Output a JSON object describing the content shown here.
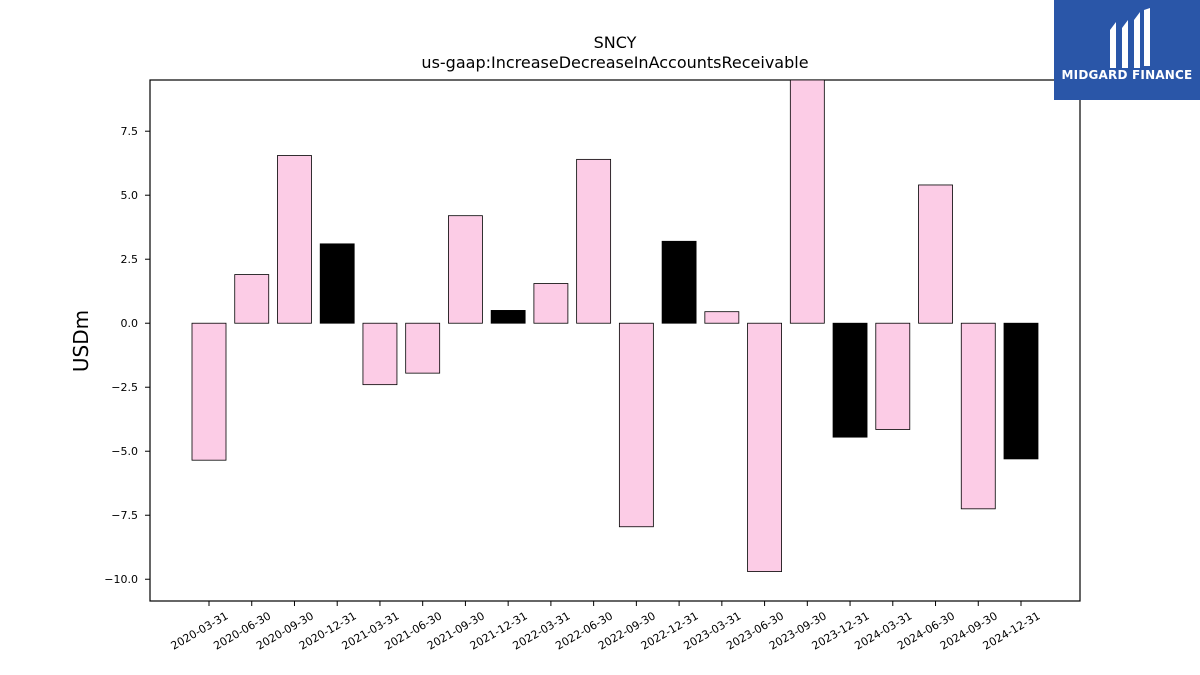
{
  "chart_data": {
    "type": "bar",
    "title": "SNCY",
    "subtitle": "us-gaap:IncreaseDecreaseInAccountsReceivable",
    "ylabel": "USDm",
    "xlabel": "",
    "ylim": [
      -10.85,
      9.5
    ],
    "yticks": [
      -10.0,
      -7.5,
      -5.0,
      -2.5,
      0.0,
      2.5,
      5.0,
      7.5
    ],
    "ytick_labels": [
      "−10.0",
      "−7.5",
      "−5.0",
      "−2.5",
      "0.0",
      "2.5",
      "5.0",
      "7.5"
    ],
    "categories": [
      "2020-03-31",
      "2020-06-30",
      "2020-09-30",
      "2020-12-31",
      "2021-03-31",
      "2021-06-30",
      "2021-09-30",
      "2021-12-31",
      "2022-03-31",
      "2022-06-30",
      "2022-09-30",
      "2022-12-31",
      "2023-03-31",
      "2023-06-30",
      "2023-09-30",
      "2023-12-31",
      "2024-03-31",
      "2024-06-30",
      "2024-09-30",
      "2024-12-31"
    ],
    "values": [
      -5.35,
      1.9,
      6.55,
      3.1,
      -2.4,
      -1.95,
      4.2,
      0.5,
      1.55,
      6.4,
      -7.95,
      3.2,
      0.45,
      -9.7,
      9.5,
      -4.45,
      -4.15,
      5.4,
      -7.25,
      -5.3
    ],
    "bar_colors": [
      "#fccce6",
      "#fccce6",
      "#fccce6",
      "#000000",
      "#fccce6",
      "#fccce6",
      "#fccce6",
      "#000000",
      "#fccce6",
      "#fccce6",
      "#fccce6",
      "#000000",
      "#fccce6",
      "#fccce6",
      "#fccce6",
      "#000000",
      "#fccce6",
      "#fccce6",
      "#fccce6",
      "#000000"
    ],
    "grid": false,
    "legend": "none"
  },
  "logo": {
    "text": "MIDGARD FINANCE",
    "background": "#2a56a8"
  }
}
